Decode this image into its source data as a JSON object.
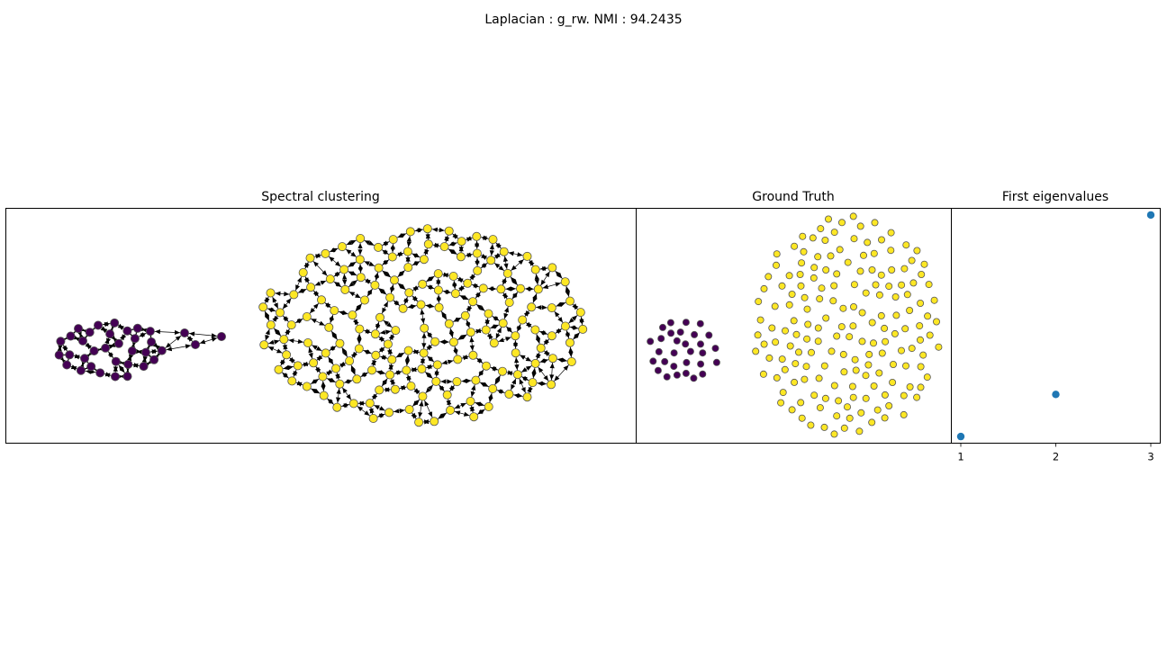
{
  "suptitle": "Laplacian : g_rw. NMI : 94.2435",
  "colors": {
    "cluster_purple": "#440154",
    "cluster_yellow": "#fde725",
    "marker_edge": "#555555",
    "edge": "#000000",
    "eigen_point": "#1f77b4"
  },
  "panels": {
    "spectral": {
      "title": "Spectral clustering"
    },
    "truth": {
      "title": "Ground Truth"
    },
    "eigen": {
      "title": "First eigenvalues"
    }
  },
  "chart_data": [
    {
      "type": "network",
      "title": "Spectral clustering",
      "clusters": [
        {
          "color": "#440154",
          "approx_count": 32
        },
        {
          "color": "#fde725",
          "approx_count": 168
        }
      ],
      "directed_edges": true,
      "axes": "off"
    },
    {
      "type": "scatter",
      "title": "Ground Truth",
      "clusters": [
        {
          "color": "#440154",
          "approx_count": 30
        },
        {
          "color": "#fde725",
          "approx_count": 170
        }
      ],
      "axes": "off"
    },
    {
      "type": "scatter",
      "title": "First eigenvalues",
      "x": [
        1,
        2,
        3
      ],
      "y": [
        0.0,
        0.19,
        1.0
      ],
      "xticks": [
        "1",
        "2",
        "3"
      ],
      "yticks": [],
      "xlim": [
        0.9,
        3.1
      ],
      "ylim": [
        -0.03,
        1.03
      ]
    }
  ]
}
